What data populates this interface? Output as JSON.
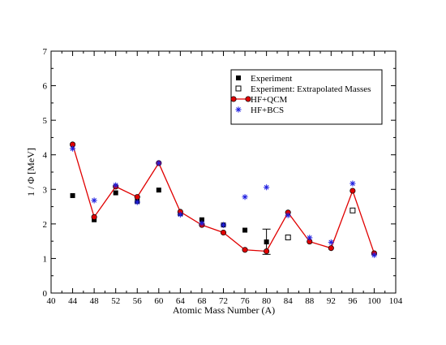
{
  "chart_data": {
    "type": "scatter",
    "title": "",
    "xlabel": "Atomic Mass Number (A)",
    "ylabel": "1 / Φ [MeV]",
    "xlim": [
      40,
      104
    ],
    "ylim": [
      0,
      7
    ],
    "xticks": [
      40,
      44,
      48,
      52,
      56,
      60,
      64,
      68,
      72,
      76,
      80,
      84,
      88,
      92,
      96,
      100,
      104
    ],
    "yticks": [
      0,
      1,
      2,
      3,
      4,
      5,
      6,
      7
    ],
    "grid": false,
    "legend_position": "top-right",
    "series": [
      {
        "name": "Experiment",
        "marker": "filled-square",
        "color": "#000000",
        "points": [
          [
            44,
            2.82
          ],
          [
            48,
            2.12
          ],
          [
            52,
            2.9
          ],
          [
            56,
            2.65
          ],
          [
            60,
            2.98
          ],
          [
            64,
            2.3
          ],
          [
            68,
            2.12
          ],
          [
            72,
            1.97
          ],
          [
            76,
            1.82
          ],
          [
            80,
            1.48
          ]
        ],
        "error_bars": [
          {
            "x": 80,
            "low": 1.12,
            "high": 1.85
          }
        ]
      },
      {
        "name": "Experiment: Extrapolated Masses",
        "marker": "open-square",
        "color": "#000000",
        "points": [
          [
            84,
            1.61
          ],
          [
            96,
            2.39
          ]
        ]
      },
      {
        "name": "HF+QCM",
        "marker": "circle-line",
        "color": "#e00000",
        "points": [
          [
            44,
            4.3
          ],
          [
            48,
            2.2
          ],
          [
            52,
            3.08
          ],
          [
            56,
            2.78
          ],
          [
            60,
            3.76
          ],
          [
            64,
            2.35
          ],
          [
            68,
            1.97
          ],
          [
            72,
            1.75
          ],
          [
            76,
            1.25
          ],
          [
            80,
            1.21
          ],
          [
            84,
            2.33
          ],
          [
            88,
            1.49
          ],
          [
            92,
            1.3
          ],
          [
            96,
            2.96
          ],
          [
            100,
            1.15
          ]
        ]
      },
      {
        "name": "HF+BCS",
        "marker": "asterisk",
        "color": "#1f1fe0",
        "points": [
          [
            44,
            4.18
          ],
          [
            48,
            2.68
          ],
          [
            52,
            3.12
          ],
          [
            56,
            2.63
          ],
          [
            60,
            3.76
          ],
          [
            64,
            2.27
          ],
          [
            68,
            2.02
          ],
          [
            72,
            1.97
          ],
          [
            76,
            2.78
          ],
          [
            80,
            3.06
          ],
          [
            84,
            2.25
          ],
          [
            88,
            1.6
          ],
          [
            92,
            1.47
          ],
          [
            96,
            3.17
          ],
          [
            100,
            1.1
          ]
        ]
      }
    ]
  }
}
